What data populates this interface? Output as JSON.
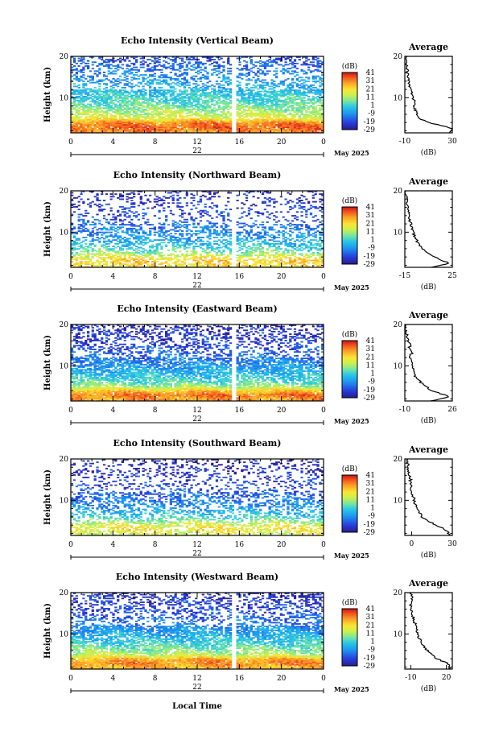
{
  "figure": {
    "date_label": "May 2025",
    "x_axis_title": "Local Time",
    "average_title": "Average",
    "colorbar_unit": "(dB)",
    "height_label": "Height (km)",
    "avg_x_label": "(dB)"
  },
  "chart_data": [
    {
      "type": "heatmap",
      "title": "Echo Intensity (Vertical Beam)",
      "xlabel": "",
      "ylabel": "Height (km)",
      "x_ticks": [
        "0",
        "4",
        "8",
        "12",
        "16",
        "20",
        "0"
      ],
      "x_range_hours": [
        0,
        24
      ],
      "day_label": "22",
      "y_ticks": [
        "20",
        "10"
      ],
      "y_range_km": [
        1.5,
        20
      ],
      "gap_hours": [
        15.5
      ],
      "color_range_db": [
        -29,
        41
      ],
      "colorbar_ticks": [
        "41",
        "31",
        "21",
        "11",
        "1",
        "-9",
        "-19",
        "-29"
      ],
      "intensity_profile": [
        {
          "h": 2,
          "db": 30
        },
        {
          "h": 3,
          "db": 34
        },
        {
          "h": 4,
          "db": 30
        },
        {
          "h": 5,
          "db": 18
        },
        {
          "h": 6,
          "db": 12
        },
        {
          "h": 7,
          "db": 9
        },
        {
          "h": 8,
          "db": 6
        },
        {
          "h": 9,
          "db": 3
        },
        {
          "h": 10,
          "db": 1
        },
        {
          "h": 11,
          "db": -1
        },
        {
          "h": 12,
          "db": -4
        },
        {
          "h": 13,
          "db": -6
        },
        {
          "h": 14,
          "db": -8
        },
        {
          "h": 15,
          "db": -10
        },
        {
          "h": 16,
          "db": -12
        },
        {
          "h": 17,
          "db": -14
        },
        {
          "h": 18,
          "db": -16
        },
        {
          "h": 19,
          "db": -18
        }
      ],
      "average": {
        "x_ticks": [
          "-10",
          "30"
        ],
        "x_range": [
          -10,
          30
        ],
        "y_ticks": [
          "20",
          "10"
        ],
        "y_range_km": [
          1.5,
          20
        ],
        "profile": [
          {
            "h": 1.5,
            "db": 28
          },
          {
            "h": 2.5,
            "db": 30
          },
          {
            "h": 3,
            "db": 25
          },
          {
            "h": 4,
            "db": 10
          },
          {
            "h": 5,
            "db": 2
          },
          {
            "h": 6,
            "db": 0
          },
          {
            "h": 7,
            "db": -1
          },
          {
            "h": 8,
            "db": -2
          },
          {
            "h": 9,
            "db": -2
          },
          {
            "h": 10,
            "db": -3
          },
          {
            "h": 11,
            "db": -4
          },
          {
            "h": 12,
            "db": -5
          },
          {
            "h": 13,
            "db": -6
          },
          {
            "h": 14,
            "db": -7
          },
          {
            "h": 15,
            "db": -7
          },
          {
            "h": 16,
            "db": -8
          },
          {
            "h": 17,
            "db": -8
          },
          {
            "h": 18,
            "db": -9
          },
          {
            "h": 19,
            "db": -9
          },
          {
            "h": 20,
            "db": -9
          }
        ]
      }
    },
    {
      "type": "heatmap",
      "title": "Echo Intensity (Northward Beam)",
      "xlabel": "",
      "ylabel": "Height (km)",
      "x_ticks": [
        "0",
        "4",
        "8",
        "12",
        "16",
        "20",
        "0"
      ],
      "x_range_hours": [
        0,
        24
      ],
      "day_label": "22",
      "y_ticks": [
        "20",
        "10"
      ],
      "y_range_km": [
        1.5,
        20
      ],
      "gap_hours": [
        15.5
      ],
      "color_range_db": [
        -29,
        41
      ],
      "colorbar_ticks": [
        "41",
        "31",
        "21",
        "11",
        "1",
        "-9",
        "-19",
        "-29"
      ],
      "intensity_profile": [
        {
          "h": 2,
          "db": 20
        },
        {
          "h": 3,
          "db": 24
        },
        {
          "h": 4,
          "db": 18
        },
        {
          "h": 5,
          "db": 8
        },
        {
          "h": 6,
          "db": 2
        },
        {
          "h": 7,
          "db": -2
        },
        {
          "h": 8,
          "db": -6
        },
        {
          "h": 9,
          "db": -9
        },
        {
          "h": 10,
          "db": -11
        },
        {
          "h": 11,
          "db": -13
        },
        {
          "h": 12,
          "db": -15
        },
        {
          "h": 13,
          "db": -17
        },
        {
          "h": 14,
          "db": -19
        },
        {
          "h": 15,
          "db": -20
        },
        {
          "h": 16,
          "db": -21
        },
        {
          "h": 17,
          "db": -22
        },
        {
          "h": 18,
          "db": -23
        },
        {
          "h": 19,
          "db": -24
        }
      ],
      "average": {
        "x_ticks": [
          "-15",
          "25"
        ],
        "x_range": [
          -15,
          25
        ],
        "y_ticks": [
          "20",
          "10"
        ],
        "y_range_km": [
          1.5,
          20
        ],
        "profile": [
          {
            "h": 1.5,
            "db": 8
          },
          {
            "h": 2.5,
            "db": 22
          },
          {
            "h": 3,
            "db": 18
          },
          {
            "h": 4,
            "db": 10
          },
          {
            "h": 5,
            "db": 4
          },
          {
            "h": 6,
            "db": 0
          },
          {
            "h": 7,
            "db": -3
          },
          {
            "h": 8,
            "db": -5
          },
          {
            "h": 9,
            "db": -7
          },
          {
            "h": 10,
            "db": -8
          },
          {
            "h": 11,
            "db": -9
          },
          {
            "h": 12,
            "db": -10
          },
          {
            "h": 13,
            "db": -11
          },
          {
            "h": 14,
            "db": -11
          },
          {
            "h": 15,
            "db": -12
          },
          {
            "h": 16,
            "db": -12
          },
          {
            "h": 17,
            "db": -13
          },
          {
            "h": 18,
            "db": -13
          },
          {
            "h": 19,
            "db": -14
          },
          {
            "h": 20,
            "db": -14
          }
        ]
      }
    },
    {
      "type": "heatmap",
      "title": "Echo Intensity (Eastward Beam)",
      "xlabel": "",
      "ylabel": "Height (km)",
      "x_ticks": [
        "0",
        "4",
        "8",
        "12",
        "16",
        "20",
        "0"
      ],
      "x_range_hours": [
        0,
        24
      ],
      "day_label": "22",
      "y_ticks": [
        "20",
        "10"
      ],
      "y_range_km": [
        1.5,
        20
      ],
      "gap_hours": [
        15.5
      ],
      "color_range_db": [
        -29,
        41
      ],
      "colorbar_ticks": [
        "41",
        "31",
        "21",
        "11",
        "1",
        "-9",
        "-19",
        "-29"
      ],
      "intensity_profile": [
        {
          "h": 2,
          "db": 28
        },
        {
          "h": 3,
          "db": 32
        },
        {
          "h": 4,
          "db": 24
        },
        {
          "h": 5,
          "db": 10
        },
        {
          "h": 6,
          "db": 4
        },
        {
          "h": 7,
          "db": 0
        },
        {
          "h": 8,
          "db": -3
        },
        {
          "h": 9,
          "db": -6
        },
        {
          "h": 10,
          "db": -9
        },
        {
          "h": 11,
          "db": -12
        },
        {
          "h": 12,
          "db": -14
        },
        {
          "h": 13,
          "db": -16
        },
        {
          "h": 14,
          "db": -18
        },
        {
          "h": 15,
          "db": -20
        },
        {
          "h": 16,
          "db": -21
        },
        {
          "h": 17,
          "db": -22
        },
        {
          "h": 18,
          "db": -23
        },
        {
          "h": 19,
          "db": -24
        }
      ],
      "average": {
        "x_ticks": [
          "-10",
          "26"
        ],
        "x_range": [
          -10,
          26
        ],
        "y_ticks": [
          "20",
          "10"
        ],
        "y_range_km": [
          1.5,
          20
        ],
        "profile": [
          {
            "h": 1.5,
            "db": 10
          },
          {
            "h": 2.5,
            "db": 24
          },
          {
            "h": 3,
            "db": 20
          },
          {
            "h": 4,
            "db": 10
          },
          {
            "h": 5,
            "db": 6
          },
          {
            "h": 6,
            "db": 2
          },
          {
            "h": 7,
            "db": -1
          },
          {
            "h": 8,
            "db": -3
          },
          {
            "h": 9,
            "db": -4
          },
          {
            "h": 10,
            "db": -5
          },
          {
            "h": 11,
            "db": -5
          },
          {
            "h": 12,
            "db": -6
          },
          {
            "h": 13,
            "db": -5
          },
          {
            "h": 14,
            "db": -7
          },
          {
            "h": 15,
            "db": -6
          },
          {
            "h": 16,
            "db": -8
          },
          {
            "h": 17,
            "db": -8
          },
          {
            "h": 18,
            "db": -9
          },
          {
            "h": 19,
            "db": -10
          },
          {
            "h": 20,
            "db": -10
          }
        ]
      }
    },
    {
      "type": "heatmap",
      "title": "Echo Intensity (Southward Beam)",
      "xlabel": "",
      "ylabel": "Height (km)",
      "x_ticks": [
        "0",
        "4",
        "8",
        "12",
        "16",
        "20",
        "0"
      ],
      "x_range_hours": [
        0,
        24
      ],
      "day_label": "22",
      "y_ticks": [
        "20",
        "10"
      ],
      "y_range_km": [
        1.5,
        20
      ],
      "gap_hours": [],
      "color_range_db": [
        -29,
        41
      ],
      "colorbar_ticks": [
        "41",
        "31",
        "21",
        "11",
        "1",
        "-9",
        "-19",
        "-29"
      ],
      "intensity_profile": [
        {
          "h": 2,
          "db": 14
        },
        {
          "h": 3,
          "db": 20
        },
        {
          "h": 4,
          "db": 16
        },
        {
          "h": 5,
          "db": 8
        },
        {
          "h": 6,
          "db": 0
        },
        {
          "h": 7,
          "db": -4
        },
        {
          "h": 8,
          "db": -8
        },
        {
          "h": 9,
          "db": -11
        },
        {
          "h": 10,
          "db": -13
        },
        {
          "h": 11,
          "db": -15
        },
        {
          "h": 12,
          "db": -17
        },
        {
          "h": 13,
          "db": -19
        },
        {
          "h": 14,
          "db": -20
        },
        {
          "h": 15,
          "db": -21
        },
        {
          "h": 16,
          "db": -22
        },
        {
          "h": 17,
          "db": -23
        },
        {
          "h": 18,
          "db": -24
        },
        {
          "h": 19,
          "db": -25
        }
      ],
      "average": {
        "x_ticks": [
          "0",
          "30"
        ],
        "x_range": [
          -5,
          30
        ],
        "y_ticks": [
          "20",
          "10"
        ],
        "y_range_km": [
          1.5,
          20
        ],
        "profile": [
          {
            "h": 1.5,
            "db": 28
          },
          {
            "h": 2.5,
            "db": 26
          },
          {
            "h": 3,
            "db": 24
          },
          {
            "h": 4,
            "db": 18
          },
          {
            "h": 5,
            "db": 12
          },
          {
            "h": 6,
            "db": 8
          },
          {
            "h": 7,
            "db": 6
          },
          {
            "h": 8,
            "db": 4
          },
          {
            "h": 9,
            "db": 3
          },
          {
            "h": 10,
            "db": 2
          },
          {
            "h": 11,
            "db": 1
          },
          {
            "h": 12,
            "db": 0
          },
          {
            "h": 13,
            "db": 0
          },
          {
            "h": 14,
            "db": -1
          },
          {
            "h": 15,
            "db": -1
          },
          {
            "h": 16,
            "db": -2
          },
          {
            "h": 17,
            "db": -2
          },
          {
            "h": 18,
            "db": -3
          },
          {
            "h": 19,
            "db": -3
          },
          {
            "h": 20,
            "db": -3
          }
        ]
      }
    },
    {
      "type": "heatmap",
      "title": "Echo Intensity (Westward Beam)",
      "xlabel": "Local Time",
      "ylabel": "Height (km)",
      "x_ticks": [
        "0",
        "4",
        "8",
        "12",
        "16",
        "20",
        "0"
      ],
      "x_range_hours": [
        0,
        24
      ],
      "day_label": "22",
      "y_ticks": [
        "20",
        "10"
      ],
      "y_range_km": [
        1.5,
        20
      ],
      "gap_hours": [
        15.5
      ],
      "color_range_db": [
        -29,
        41
      ],
      "colorbar_ticks": [
        "41",
        "31",
        "21",
        "11",
        "1",
        "-9",
        "-19",
        "-29"
      ],
      "intensity_profile": [
        {
          "h": 2,
          "db": 26
        },
        {
          "h": 3,
          "db": 30
        },
        {
          "h": 4,
          "db": 26
        },
        {
          "h": 5,
          "db": 12
        },
        {
          "h": 6,
          "db": 8
        },
        {
          "h": 7,
          "db": 4
        },
        {
          "h": 8,
          "db": 0
        },
        {
          "h": 9,
          "db": -3
        },
        {
          "h": 10,
          "db": -6
        },
        {
          "h": 11,
          "db": -9
        },
        {
          "h": 12,
          "db": -12
        },
        {
          "h": 13,
          "db": -14
        },
        {
          "h": 14,
          "db": -16
        },
        {
          "h": 15,
          "db": -18
        },
        {
          "h": 16,
          "db": -20
        },
        {
          "h": 17,
          "db": -21
        },
        {
          "h": 18,
          "db": -22
        },
        {
          "h": 19,
          "db": -23
        }
      ],
      "average": {
        "x_ticks": [
          "-10",
          "20"
        ],
        "x_range": [
          -15,
          25
        ],
        "y_ticks": [
          "20",
          "10"
        ],
        "y_range_km": [
          1.5,
          20
        ],
        "profile": [
          {
            "h": 1.5,
            "db": 22
          },
          {
            "h": 2.5,
            "db": 23
          },
          {
            "h": 3,
            "db": 20
          },
          {
            "h": 4,
            "db": 12
          },
          {
            "h": 5,
            "db": 8
          },
          {
            "h": 6,
            "db": 4
          },
          {
            "h": 7,
            "db": 1
          },
          {
            "h": 8,
            "db": -1
          },
          {
            "h": 9,
            "db": -3
          },
          {
            "h": 10,
            "db": -4
          },
          {
            "h": 11,
            "db": -5
          },
          {
            "h": 12,
            "db": -6
          },
          {
            "h": 13,
            "db": -7
          },
          {
            "h": 14,
            "db": -8
          },
          {
            "h": 15,
            "db": -9
          },
          {
            "h": 16,
            "db": -10
          },
          {
            "h": 17,
            "db": -10
          },
          {
            "h": 18,
            "db": -8
          },
          {
            "h": 19,
            "db": -9
          },
          {
            "h": 20,
            "db": -10
          }
        ]
      }
    }
  ]
}
